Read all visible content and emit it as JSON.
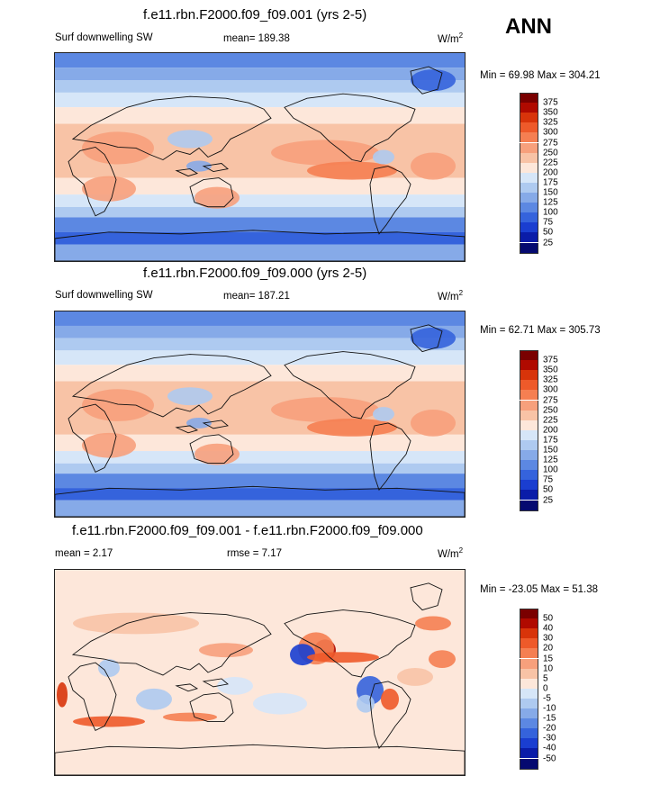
{
  "season": "ANN",
  "panels": [
    {
      "title": "f.e11.rbn.F2000.f09_f09.001 (yrs 2-5)",
      "left_label": "Surf downwelling SW",
      "center_label": "mean= 189.38",
      "units": "W/m",
      "units_sup": "2",
      "minmax": "Min =  69.98 Max = 304.21",
      "colorbar": {
        "labels": [
          "375",
          "350",
          "325",
          "300",
          "275",
          "250",
          "225",
          "200",
          "175",
          "150",
          "125",
          "100",
          "75",
          "50",
          "25"
        ],
        "colors": [
          "#7a0000",
          "#b00a00",
          "#d8340a",
          "#ee5a2a",
          "#f57f52",
          "#f7a07c",
          "#f8c3a6",
          "#fde7da",
          "#d6e6f8",
          "#aecaf0",
          "#86aae8",
          "#5c88e2",
          "#3563dc",
          "#1a3ed0",
          "#0a1ca8",
          "#050a70"
        ]
      },
      "map_style": "field"
    },
    {
      "title": "f.e11.rbn.F2000.f09_f09.000 (yrs 2-5)",
      "left_label": "Surf downwelling SW",
      "center_label": "mean= 187.21",
      "units": "W/m",
      "units_sup": "2",
      "minmax": "Min =  62.71 Max = 305.73",
      "colorbar": {
        "labels": [
          "375",
          "350",
          "325",
          "300",
          "275",
          "250",
          "225",
          "200",
          "175",
          "150",
          "125",
          "100",
          "75",
          "50",
          "25"
        ],
        "colors": [
          "#7a0000",
          "#b00a00",
          "#d8340a",
          "#ee5a2a",
          "#f57f52",
          "#f7a07c",
          "#f8c3a6",
          "#fde7da",
          "#d6e6f8",
          "#aecaf0",
          "#86aae8",
          "#5c88e2",
          "#3563dc",
          "#1a3ed0",
          "#0a1ca8",
          "#050a70"
        ]
      },
      "map_style": "field"
    },
    {
      "title": "f.e11.rbn.F2000.f09_f09.001 - f.e11.rbn.F2000.f09_f09.000",
      "left_label": "mean =   2.17",
      "center_label": "rmse =   7.17",
      "units": "W/m",
      "units_sup": "2",
      "minmax": "Min = -23.05 Max =  51.38",
      "colorbar": {
        "labels": [
          "50",
          "40",
          "30",
          "20",
          "15",
          "10",
          "5",
          "0",
          "-5",
          "-10",
          "-15",
          "-20",
          "-30",
          "-40",
          "-50"
        ],
        "colors": [
          "#7a0000",
          "#b00a00",
          "#d8340a",
          "#ee5a2a",
          "#f57f52",
          "#f7a07c",
          "#f8c3a6",
          "#fde7da",
          "#d6e6f8",
          "#aecaf0",
          "#86aae8",
          "#5c88e2",
          "#3563dc",
          "#1a3ed0",
          "#0a1ca8",
          "#050a70"
        ]
      },
      "map_style": "diff"
    }
  ]
}
